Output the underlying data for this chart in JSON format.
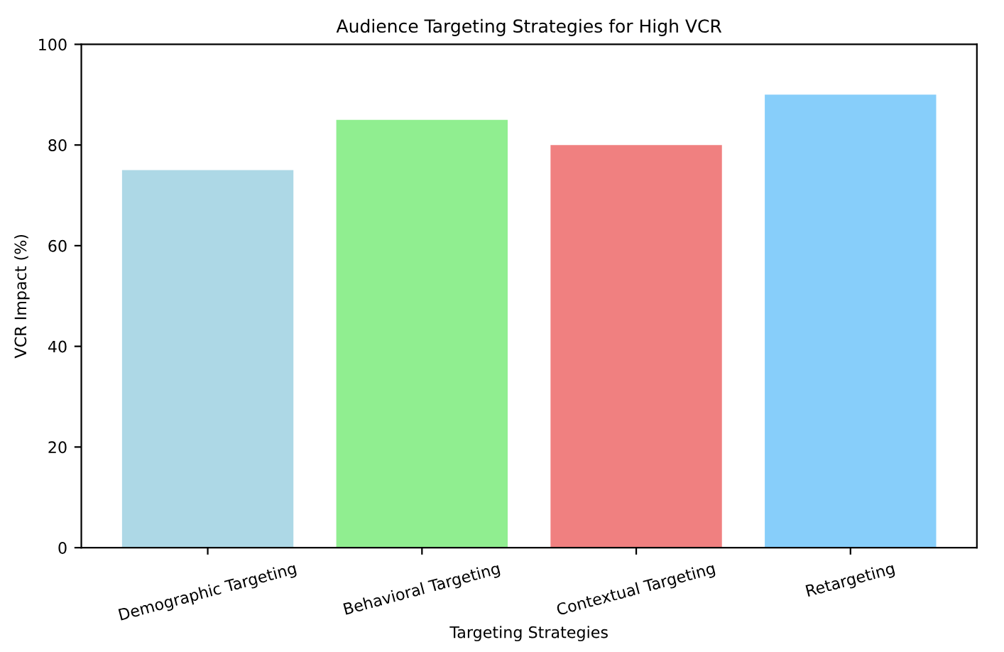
{
  "chart_data": {
    "type": "bar",
    "title": "Audience Targeting Strategies for High VCR",
    "xlabel": "Targeting Strategies",
    "ylabel": "VCR Impact (%)",
    "categories": [
      "Demographic Targeting",
      "Behavioral Targeting",
      "Contextual Targeting",
      "Retargeting"
    ],
    "values": [
      75,
      85,
      80,
      90
    ],
    "colors": [
      "#add8e6",
      "#90ee90",
      "#f08080",
      "#87cefa"
    ],
    "ylim": [
      0,
      100
    ],
    "yticks": [
      0,
      20,
      40,
      60,
      80,
      100
    ],
    "grid": false,
    "legend": false
  }
}
